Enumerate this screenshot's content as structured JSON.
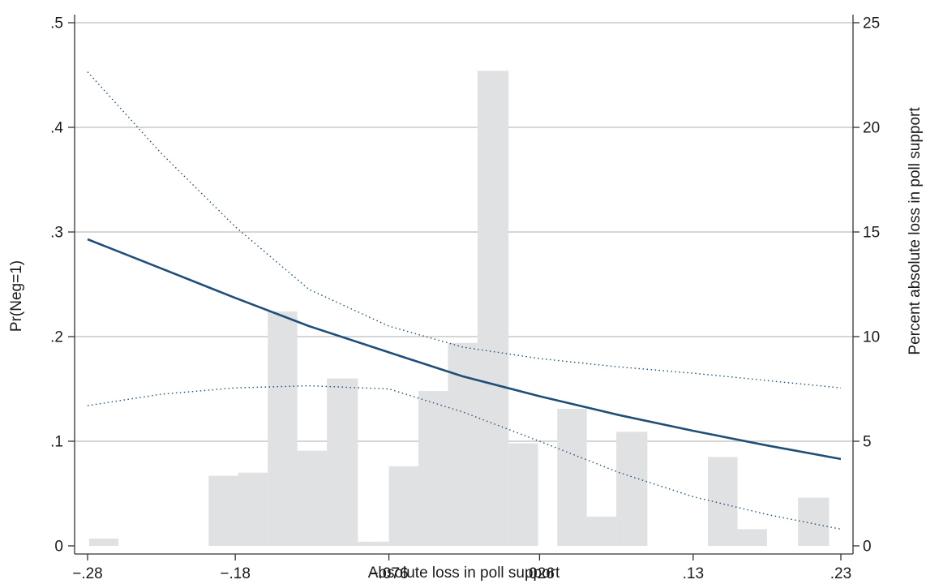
{
  "chart_data": {
    "type": "line",
    "title": "",
    "xlabel": "Absolute loss in poll support",
    "ylabel": "Pr(Neg=1)",
    "y2label": "Percent absolute loss in poll support",
    "x_ticks": [
      {
        "value": -0.28,
        "label": "−.28"
      },
      {
        "value": -0.18,
        "label": "−.18"
      },
      {
        "value": -0.076,
        "label": "−.076"
      },
      {
        "value": 0.026,
        "label": ".026"
      },
      {
        "value": 0.13,
        "label": ".13"
      },
      {
        "value": 0.23,
        "label": ".23"
      }
    ],
    "y_ticks": [
      {
        "value": 0,
        "label": "0"
      },
      {
        "value": 0.1,
        "label": ".1"
      },
      {
        "value": 0.2,
        "label": ".2"
      },
      {
        "value": 0.3,
        "label": ".3"
      },
      {
        "value": 0.4,
        "label": ".4"
      },
      {
        "value": 0.5,
        "label": ".5"
      }
    ],
    "y2_ticks": [
      {
        "value": 0,
        "label": "0"
      },
      {
        "value": 5,
        "label": "5"
      },
      {
        "value": 10,
        "label": "10"
      },
      {
        "value": 15,
        "label": "15"
      },
      {
        "value": 20,
        "label": "20"
      },
      {
        "value": 25,
        "label": "25"
      }
    ],
    "xlim": [
      -0.28,
      0.23
    ],
    "ylim": [
      0,
      0.5
    ],
    "y2lim": [
      0,
      25
    ],
    "grid": "horizontal",
    "colors": {
      "line": "#1f4e79",
      "ci": "#1f4e79",
      "bars": "#e0e1e3",
      "grid": "#bdbdbd",
      "axis": "#333333"
    },
    "histogram": [
      {
        "x0": -0.279,
        "x1": -0.259,
        "percent": 0.35
      },
      {
        "x0": -0.198,
        "x1": -0.178,
        "percent": 3.35
      },
      {
        "x0": -0.178,
        "x1": -0.158,
        "percent": 3.5
      },
      {
        "x0": -0.158,
        "x1": -0.138,
        "percent": 11.2
      },
      {
        "x0": -0.138,
        "x1": -0.118,
        "percent": 4.55
      },
      {
        "x0": -0.118,
        "x1": -0.097,
        "percent": 8.0
      },
      {
        "x0": -0.097,
        "x1": -0.076,
        "percent": 0.2
      },
      {
        "x0": -0.076,
        "x1": -0.056,
        "percent": 3.8
      },
      {
        "x0": -0.056,
        "x1": -0.036,
        "percent": 7.4
      },
      {
        "x0": -0.036,
        "x1": -0.016,
        "percent": 9.7
      },
      {
        "x0": -0.016,
        "x1": 0.005,
        "percent": 22.7
      },
      {
        "x0": 0.005,
        "x1": 0.025,
        "percent": 4.9
      },
      {
        "x0": 0.038,
        "x1": 0.058,
        "percent": 6.55
      },
      {
        "x0": 0.058,
        "x1": 0.078,
        "percent": 1.4
      },
      {
        "x0": 0.078,
        "x1": 0.099,
        "percent": 5.45
      },
      {
        "x0": 0.14,
        "x1": 0.16,
        "percent": 4.25
      },
      {
        "x0": 0.16,
        "x1": 0.18,
        "percent": 0.8
      },
      {
        "x0": 0.201,
        "x1": 0.222,
        "percent": 2.3
      }
    ],
    "series": [
      {
        "style": "solid",
        "x": [
          -0.28,
          -0.23,
          -0.18,
          -0.13,
          -0.076,
          -0.026,
          0.026,
          0.08,
          0.13,
          0.18,
          0.23
        ],
        "y": [
          0.293,
          0.265,
          0.237,
          0.21,
          0.185,
          0.162,
          0.143,
          0.125,
          0.11,
          0.096,
          0.083
        ]
      },
      {
        "style": "dotted",
        "x": [
          -0.28,
          -0.23,
          -0.18,
          -0.13,
          -0.076,
          -0.026,
          0.026,
          0.08,
          0.13,
          0.18,
          0.23
        ],
        "y": [
          0.453,
          0.375,
          0.305,
          0.245,
          0.21,
          0.19,
          0.179,
          0.171,
          0.165,
          0.158,
          0.151
        ]
      },
      {
        "style": "dotted",
        "x": [
          -0.28,
          -0.23,
          -0.18,
          -0.13,
          -0.076,
          -0.026,
          0.026,
          0.08,
          0.13,
          0.18,
          0.23
        ],
        "y": [
          0.134,
          0.145,
          0.151,
          0.153,
          0.15,
          0.128,
          0.1,
          0.07,
          0.047,
          0.03,
          0.016
        ]
      }
    ]
  }
}
